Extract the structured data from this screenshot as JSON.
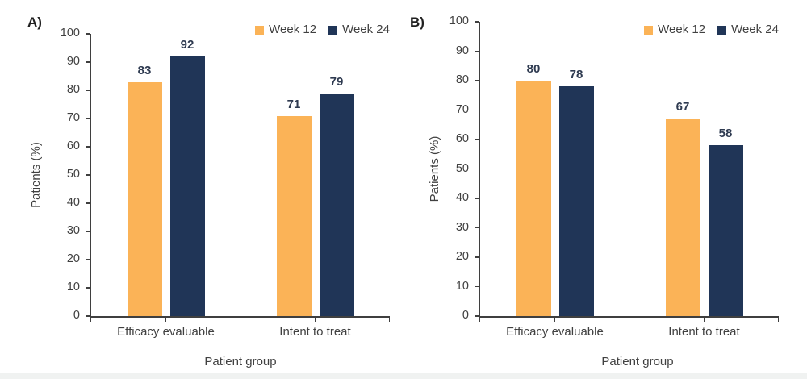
{
  "page": {
    "background": "#ffffff",
    "footer_strip_color": "#f0f2f1"
  },
  "colors": {
    "axis": "#3f3f3f",
    "tick_text": "#404040",
    "value_label_text": "#2e3a50",
    "week12_orange": "#fbb357",
    "week24_navy": "#203557"
  },
  "chart_data": [
    {
      "type": "bar",
      "panel_label": "A)",
      "categories": [
        "Efficacy evaluable",
        "Intent to treat"
      ],
      "series": [
        {
          "name": "Week 12",
          "color": "#fbb357",
          "values": [
            83,
            71
          ]
        },
        {
          "name": "Week 24",
          "color": "#203557",
          "values": [
            92,
            79
          ]
        }
      ],
      "ylabel": "Patients (%)",
      "xlabel": "Patient group",
      "ylim": [
        0,
        100
      ],
      "ytick_step": 10,
      "grid": false,
      "value_labels": true,
      "legend_position": "top-right"
    },
    {
      "type": "bar",
      "panel_label": "B)",
      "categories": [
        "Efficacy evaluable",
        "Intent to treat"
      ],
      "series": [
        {
          "name": "Week 12",
          "color": "#fbb357",
          "values": [
            80,
            67
          ]
        },
        {
          "name": "Week 24",
          "color": "#203557",
          "values": [
            78,
            58
          ]
        }
      ],
      "ylabel": "Patients (%)",
      "xlabel": "Patient group",
      "ylim": [
        0,
        100
      ],
      "ytick_step": 10,
      "grid": false,
      "value_labels": true,
      "legend_position": "top-right"
    }
  ]
}
